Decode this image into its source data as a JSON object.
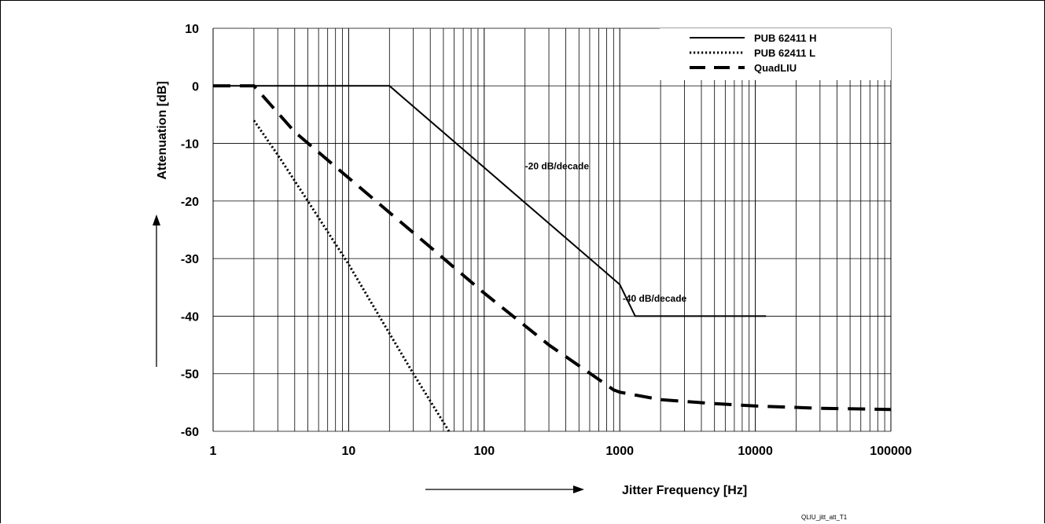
{
  "chart_data": {
    "type": "line",
    "xscale": "log",
    "xlim": [
      1,
      100000
    ],
    "ylim": [
      -60,
      10
    ],
    "grid": true,
    "xlabel": "Jitter Frequency [Hz]",
    "ylabel": "Attenuation [dB]",
    "xticks": [
      "1",
      "10",
      "100",
      "1000",
      "10000",
      "100000"
    ],
    "yticks": [
      "10",
      "0",
      "-10",
      "-20",
      "-30",
      "-40",
      "-50",
      "-60"
    ],
    "legend_position": "top-right",
    "series": [
      {
        "name": "PUB 62411 H",
        "style": "solid",
        "x": [
          1,
          20,
          1000,
          1300,
          12000
        ],
        "y": [
          0,
          0,
          -34.5,
          -40,
          -40
        ]
      },
      {
        "name": "PUB 62411 L",
        "style": "dotted",
        "x": [
          2,
          3,
          5,
          10,
          20,
          30,
          55
        ],
        "y": [
          -6,
          -12,
          -20,
          -31,
          -43,
          -50,
          -60
        ]
      },
      {
        "name": "QuadLIU",
        "style": "dashed",
        "x": [
          1,
          2,
          4,
          10,
          40,
          100,
          300,
          700,
          900,
          1000,
          2000,
          5000,
          10000,
          30000,
          100000
        ],
        "y": [
          0,
          0,
          -8,
          -16,
          -28,
          -36,
          -45,
          -51,
          -52.8,
          -53.2,
          -54.5,
          -55.2,
          -55.6,
          -56,
          -56.2
        ]
      }
    ],
    "annotations": [
      {
        "text": "-20 dB/decade",
        "x": 200,
        "y": -14.5
      },
      {
        "text": "-40 dB/decade",
        "x": 1050,
        "y": -37.5
      }
    ],
    "figure_id": "QLIU_jitt_att_T1"
  }
}
